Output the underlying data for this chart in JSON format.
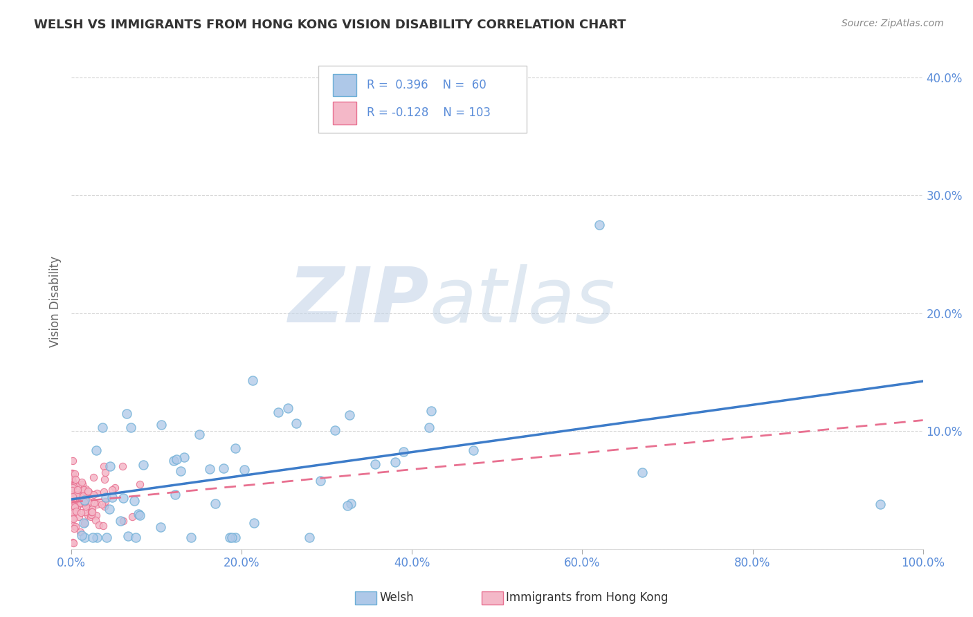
{
  "title": "WELSH VS IMMIGRANTS FROM HONG KONG VISION DISABILITY CORRELATION CHART",
  "source": "Source: ZipAtlas.com",
  "ylabel": "Vision Disability",
  "xlim": [
    0,
    1.0
  ],
  "ylim": [
    0,
    0.42
  ],
  "xtick_vals": [
    0.0,
    0.2,
    0.4,
    0.6,
    0.8,
    1.0
  ],
  "xtick_labels": [
    "0.0%",
    "20.0%",
    "40.0%",
    "60.0%",
    "80.0%",
    "100.0%"
  ],
  "ytick_vals": [
    0.0,
    0.1,
    0.2,
    0.3,
    0.4
  ],
  "ytick_labels": [
    "",
    "10.0%",
    "20.0%",
    "30.0%",
    "40.0%"
  ],
  "welsh_face_color": "#aec8e8",
  "welsh_edge_color": "#6baed6",
  "hk_face_color": "#f4b8c8",
  "hk_edge_color": "#e87090",
  "welsh_line_color": "#3d7cc9",
  "hk_line_color": "#e87090",
  "tick_color": "#5b8dd9",
  "label_color": "#5b8dd9",
  "welsh_R": 0.396,
  "welsh_N": 60,
  "hk_R": -0.128,
  "hk_N": 103,
  "watermark_zip": "ZIP",
  "watermark_atlas": "atlas",
  "background_color": "#ffffff",
  "grid_color": "#cccccc",
  "legend_box_color": "#e8eef8",
  "legend_border_color": "#cccccc"
}
